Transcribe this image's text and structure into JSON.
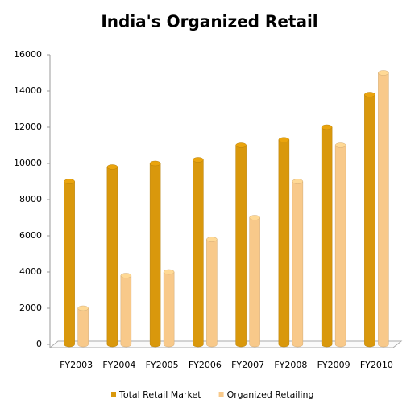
{
  "chart_data": {
    "type": "bar",
    "title": "India's Organized Retail",
    "categories": [
      "FY2003",
      "FY2004",
      "FY2005",
      "FY2006",
      "FY2007",
      "FY2008",
      "FY2009",
      "FY2010"
    ],
    "series": [
      {
        "name": "Total Retail Market",
        "color": "#d9980c",
        "values": [
          9000,
          9800,
          10000,
          10200,
          11000,
          11300,
          12000,
          13800
        ]
      },
      {
        "name": "Organized Retailing",
        "color": "#f8c98a",
        "values": [
          2000,
          3800,
          4000,
          5800,
          7000,
          9000,
          11000,
          15000
        ]
      }
    ],
    "ylim": [
      0,
      16000
    ],
    "yticks": [
      0,
      2000,
      4000,
      6000,
      8000,
      10000,
      12000,
      14000,
      16000
    ],
    "legend": "bottom"
  }
}
